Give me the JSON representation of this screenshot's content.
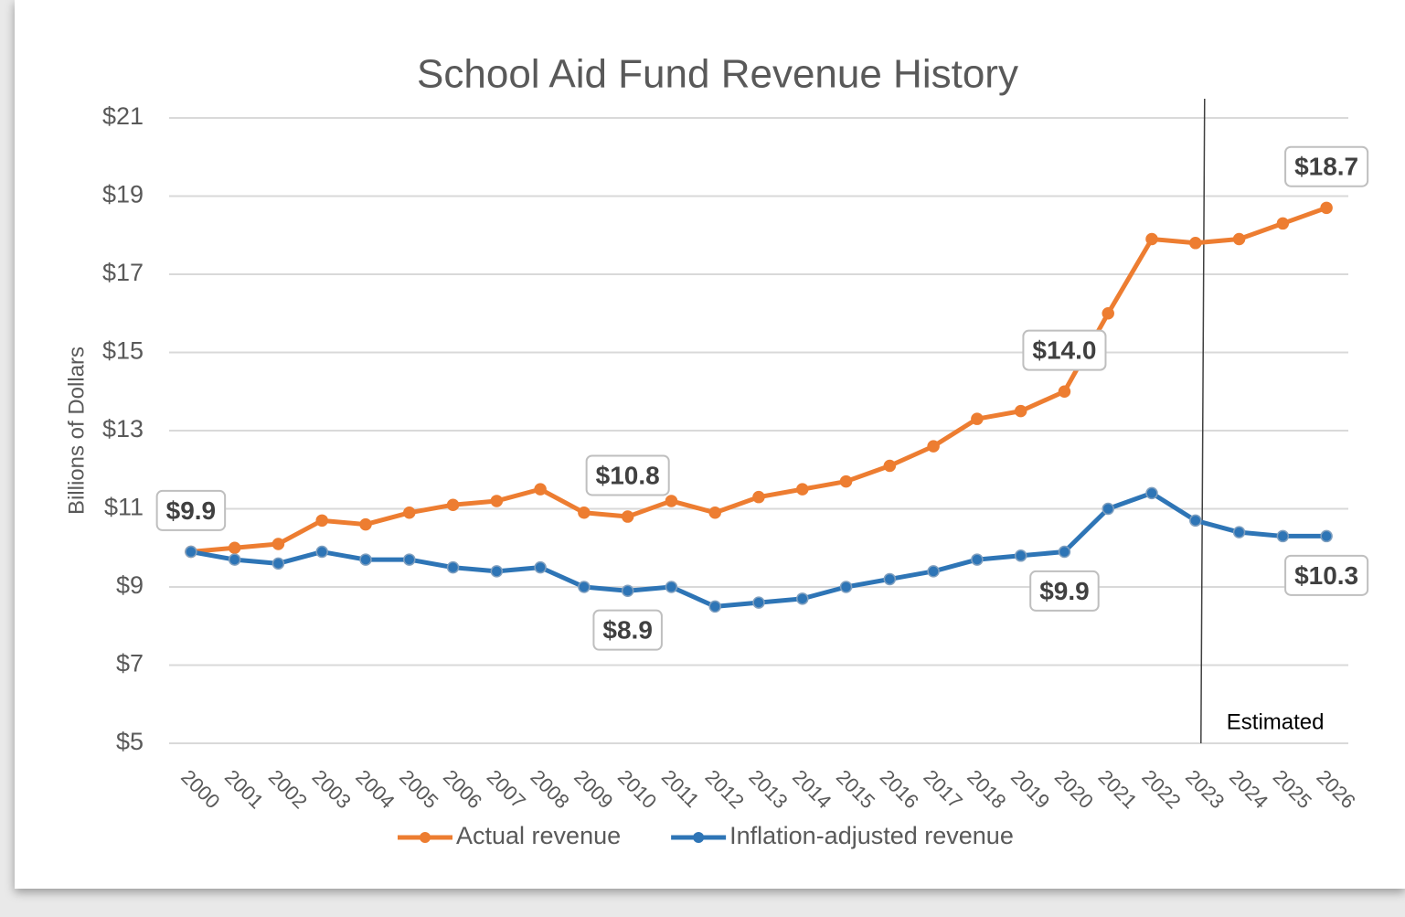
{
  "chart_data": {
    "type": "line",
    "title": "School Aid Fund Revenue History",
    "y_label": "Billions of Dollars",
    "categories": [
      "2000",
      "2001",
      "2002",
      "2003",
      "2004",
      "2005",
      "2006",
      "2007",
      "2008",
      "2009",
      "2010",
      "2011",
      "2012",
      "2013",
      "2014",
      "2015",
      "2016",
      "2017",
      "2018",
      "2019",
      "2020",
      "2021",
      "2022",
      "2023",
      "2024",
      "2025",
      "2026"
    ],
    "series": [
      {
        "name": "Actual revenue",
        "color": "#ed7d31",
        "values": [
          9.9,
          10.0,
          10.1,
          10.7,
          10.6,
          10.9,
          11.1,
          11.2,
          11.5,
          10.9,
          10.8,
          11.2,
          10.9,
          11.3,
          11.5,
          11.7,
          12.1,
          12.6,
          13.3,
          13.5,
          14.0,
          16.0,
          17.9,
          17.8,
          17.9,
          18.3,
          18.7
        ],
        "value_labels": [
          "$9.9",
          null,
          null,
          null,
          null,
          null,
          null,
          null,
          null,
          null,
          "$10.8",
          null,
          null,
          null,
          null,
          null,
          null,
          null,
          null,
          null,
          "$14.0",
          null,
          null,
          null,
          null,
          null,
          "$18.7"
        ]
      },
      {
        "name": "Inflation-adjusted revenue",
        "color": "#2e75b6",
        "values": [
          9.9,
          9.7,
          9.6,
          9.9,
          9.7,
          9.7,
          9.5,
          9.4,
          9.5,
          9.0,
          8.9,
          9.0,
          8.5,
          8.6,
          8.7,
          9.0,
          9.2,
          9.4,
          9.7,
          9.8,
          9.9,
          11.0,
          11.4,
          10.7,
          10.4,
          10.3,
          10.3
        ],
        "value_labels": [
          null,
          null,
          null,
          null,
          null,
          null,
          null,
          null,
          null,
          null,
          "$8.9",
          null,
          null,
          null,
          null,
          null,
          null,
          null,
          null,
          null,
          "$9.9",
          null,
          null,
          null,
          null,
          null,
          "$10.3"
        ]
      }
    ],
    "ylim": [
      5,
      21
    ],
    "yticks": [
      {
        "value": 5,
        "label": "$5"
      },
      {
        "value": 7,
        "label": "$7"
      },
      {
        "value": 9,
        "label": "$9"
      },
      {
        "value": 11,
        "label": "$11"
      },
      {
        "value": 13,
        "label": "$13"
      },
      {
        "value": 15,
        "label": "$15"
      },
      {
        "value": 17,
        "label": "$17"
      },
      {
        "value": 19,
        "label": "$19"
      },
      {
        "value": 21,
        "label": "$21"
      }
    ],
    "grid": true,
    "legend": "bottom",
    "annotation": {
      "text": "Estimated",
      "x": "2023"
    }
  }
}
